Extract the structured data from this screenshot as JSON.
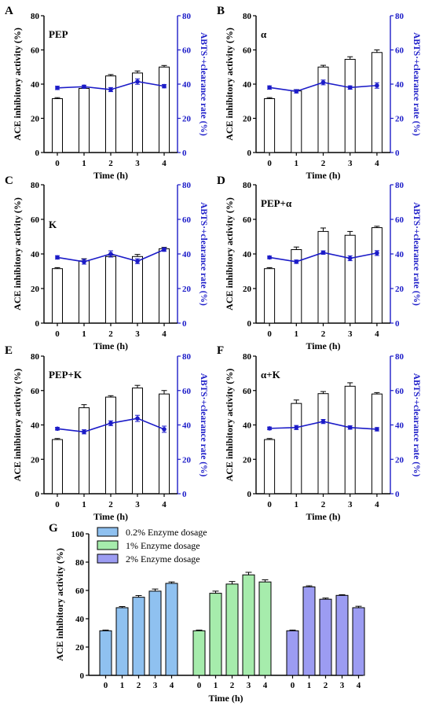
{
  "colors": {
    "line": "#1c1cc8",
    "bar_outline": "#000000",
    "bar_fill_small": "#ffffff",
    "g_series": [
      "#8fc1f0",
      "#a6ecac",
      "#9c9cf2"
    ]
  },
  "chart_data": [
    {
      "panel": "A",
      "label": "PEP",
      "type": "bar+line",
      "categories": [
        "0",
        "1",
        "2",
        "3",
        "4"
      ],
      "xlabel": "Time (h)",
      "ylabel": "ACE inhibitory activity (%)",
      "y2label": "ABTS·+clearance rate (%)",
      "ylim": [
        0,
        80
      ],
      "y2lim": [
        0,
        80
      ],
      "yticks": [
        0,
        20,
        40,
        60,
        80
      ],
      "bars": [
        31.5,
        37.5,
        44.8,
        46.5,
        50.0
      ],
      "bar_err": [
        0.6,
        0.6,
        0.8,
        1.2,
        0.9
      ],
      "line": [
        37.8,
        38.5,
        36.8,
        41.5,
        38.8
      ],
      "line_err": [
        1.0,
        0.9,
        1.2,
        1.6,
        1.0
      ]
    },
    {
      "panel": "B",
      "label": "α",
      "type": "bar+line",
      "categories": [
        "0",
        "1",
        "2",
        "3",
        "4"
      ],
      "xlabel": "Time (h)",
      "ylabel": "ACE inhibitory activity (%)",
      "y2label": "ABTS·+clearance rate (%)",
      "ylim": [
        0,
        80
      ],
      "y2lim": [
        0,
        80
      ],
      "yticks": [
        0,
        20,
        40,
        60,
        80
      ],
      "bars": [
        31.5,
        36.0,
        50.0,
        54.5,
        58.5
      ],
      "bar_err": [
        0.6,
        0.8,
        1.0,
        1.5,
        1.5
      ],
      "line": [
        38.0,
        35.8,
        41.0,
        38.0,
        39.2
      ],
      "line_err": [
        1.0,
        1.0,
        1.4,
        1.0,
        1.6
      ]
    },
    {
      "panel": "C",
      "label": "K",
      "type": "bar+line",
      "categories": [
        "0",
        "1",
        "2",
        "3",
        "4"
      ],
      "xlabel": "Time (h)",
      "ylabel": "ACE inhibitory activity (%)",
      "y2label": "ABTS·+clearance rate (%)",
      "ylim": [
        0,
        80
      ],
      "y2lim": [
        0,
        80
      ],
      "yticks": [
        0,
        20,
        40,
        60,
        80
      ],
      "bars": [
        31.5,
        36.0,
        38.5,
        38.5,
        43.0
      ],
      "bar_err": [
        0.6,
        1.2,
        0.8,
        1.2,
        0.8
      ],
      "line": [
        38.0,
        35.5,
        40.0,
        35.8,
        42.5
      ],
      "line_err": [
        1.0,
        1.4,
        1.8,
        1.4,
        1.0
      ]
    },
    {
      "panel": "D",
      "label": "PEP+α",
      "type": "bar+line",
      "categories": [
        "0",
        "1",
        "2",
        "3",
        "4"
      ],
      "xlabel": "Time (h)",
      "ylabel": "ACE inhibitory activity (%)",
      "y2label": "ABTS·+clearance rate (%)",
      "ylim": [
        0,
        80
      ],
      "y2lim": [
        0,
        80
      ],
      "yticks": [
        0,
        20,
        40,
        60,
        80
      ],
      "bars": [
        31.5,
        42.5,
        53.0,
        50.8,
        55.2
      ],
      "bar_err": [
        0.6,
        1.5,
        2.0,
        2.2,
        0.8
      ],
      "line": [
        38.0,
        35.5,
        40.8,
        37.5,
        40.5
      ],
      "line_err": [
        0.8,
        1.0,
        1.0,
        1.4,
        1.4
      ]
    },
    {
      "panel": "E",
      "label": "PEP+K",
      "type": "bar+line",
      "categories": [
        "0",
        "1",
        "2",
        "3",
        "4"
      ],
      "xlabel": "Time (h)",
      "ylabel": "ACE inhibitory activity (%)",
      "y2label": "ABTS·+clearance rate (%)",
      "ylim": [
        0,
        80
      ],
      "y2lim": [
        0,
        80
      ],
      "yticks": [
        0,
        20,
        40,
        60,
        80
      ],
      "bars": [
        31.5,
        50.0,
        56.2,
        61.5,
        58.0
      ],
      "bar_err": [
        0.6,
        1.8,
        0.8,
        1.5,
        2.0
      ],
      "line": [
        37.8,
        36.0,
        41.0,
        43.8,
        37.5
      ],
      "line_err": [
        0.8,
        1.2,
        1.4,
        1.8,
        1.8
      ]
    },
    {
      "panel": "F",
      "label": "α+K",
      "type": "bar+line",
      "categories": [
        "0",
        "1",
        "2",
        "3",
        "4"
      ],
      "xlabel": "Time (h)",
      "ylabel": "ACE inhibitory activity (%)",
      "y2label": "ABTS·+clearance rate (%)",
      "ylim": [
        0,
        80
      ],
      "y2lim": [
        0,
        80
      ],
      "yticks": [
        0,
        20,
        40,
        60,
        80
      ],
      "bars": [
        31.5,
        52.5,
        58.2,
        62.5,
        58.0
      ],
      "bar_err": [
        0.6,
        2.0,
        1.2,
        2.0,
        0.8
      ],
      "line": [
        38.0,
        38.5,
        42.0,
        38.5,
        37.5
      ],
      "line_err": [
        0.8,
        1.2,
        1.2,
        1.0,
        1.0
      ]
    },
    {
      "panel": "G",
      "type": "grouped-bar",
      "categories": [
        "0",
        "1",
        "2",
        "3",
        "4"
      ],
      "xlabel": "Time (h)",
      "ylabel": "ACE inhibitory activity (%)",
      "ylim": [
        0,
        100
      ],
      "yticks": [
        0,
        20,
        40,
        60,
        80,
        100
      ],
      "legend_position": "top-left",
      "series": [
        {
          "name": "0.2% Enzyme dosage",
          "values": [
            31.5,
            47.8,
            55.2,
            59.5,
            65.0
          ],
          "err": [
            0.5,
            0.8,
            1.2,
            1.5,
            1.0
          ]
        },
        {
          "name": "1% Enzyme dosage",
          "values": [
            31.5,
            58.0,
            64.5,
            71.0,
            66.0
          ],
          "err": [
            0.5,
            1.5,
            1.8,
            1.8,
            1.5
          ]
        },
        {
          "name": "2% Enzyme dosage",
          "values": [
            31.5,
            62.5,
            53.8,
            56.5,
            47.8
          ],
          "err": [
            0.5,
            0.8,
            0.8,
            0.5,
            1.0
          ]
        }
      ]
    }
  ]
}
